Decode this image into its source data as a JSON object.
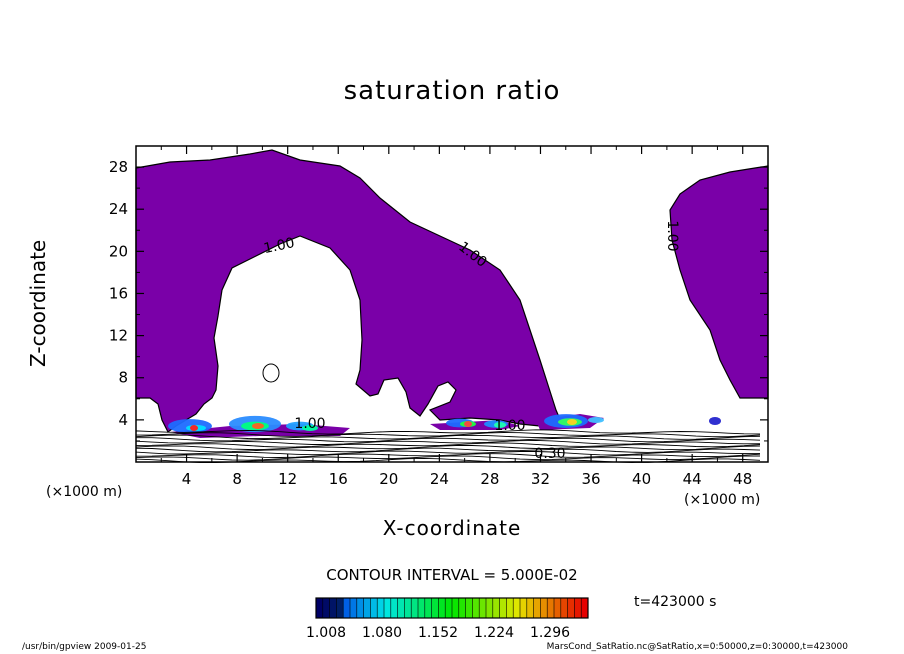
{
  "chart_data": {
    "type": "contour",
    "title": "saturation ratio",
    "xlabel": "X-coordinate",
    "ylabel": "Z-coordinate",
    "x_unit": "(×1000 m)",
    "z_unit": "(×1000 m)",
    "xlim": [
      0,
      50
    ],
    "ylim": [
      0,
      30
    ],
    "x_ticks": [
      "4",
      "8",
      "12",
      "16",
      "20",
      "24",
      "28",
      "32",
      "36",
      "40",
      "44",
      "48"
    ],
    "y_ticks": [
      "4",
      "8",
      "12",
      "16",
      "20",
      "24",
      "28"
    ],
    "contour_labels": [
      "1.00",
      "1.00",
      "1.00",
      "1.00",
      "0.30",
      "1.00"
    ],
    "contour_interval": "CONTOUR INTERVAL = 5.000E-02",
    "colorbar_ticks": [
      "1.008",
      "1.080",
      "1.152",
      "1.224",
      "1.296"
    ],
    "time_label": "t=423000 s",
    "fill_color": "#7a00a8",
    "footer_left": "/usr/bin/gpview  2009-01-25",
    "footer_right": "MarsCond_SatRatio.nc@SatRatio,x=0:50000,z=0:30000,t=423000"
  }
}
